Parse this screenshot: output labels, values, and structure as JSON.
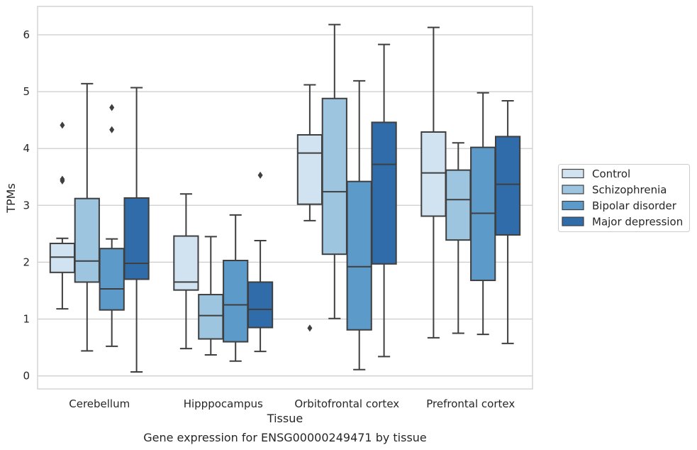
{
  "chart_data": {
    "type": "box",
    "title": "",
    "caption": "Gene expression for ENSG00000249471 by tissue",
    "xlabel": "Tissue",
    "ylabel": "TPMs",
    "ylim": [
      -0.23,
      6.5
    ],
    "yticks": [
      "0",
      "1",
      "2",
      "3",
      "4",
      "5",
      "6"
    ],
    "categories": [
      "Cerebellum",
      "Hipppocampus",
      "Orbitofrontal cortex",
      "Prefrontal cortex"
    ],
    "grid": "horizontal",
    "legend_position": "right",
    "series": [
      {
        "name": "Control",
        "color": "#d1e2f1",
        "boxes": [
          {
            "whislo": 1.18,
            "q1": 1.82,
            "med": 2.09,
            "q3": 2.33,
            "whishi": 2.42,
            "fliers": [
              3.43,
              3.46,
              4.41
            ]
          },
          {
            "whislo": 0.48,
            "q1": 1.51,
            "med": 1.65,
            "q3": 2.46,
            "whishi": 3.2,
            "fliers": []
          },
          {
            "whislo": 2.73,
            "q1": 3.02,
            "med": 3.92,
            "q3": 4.24,
            "whishi": 5.12,
            "fliers": [
              0.84
            ]
          },
          {
            "whislo": 0.67,
            "q1": 2.81,
            "med": 3.57,
            "q3": 4.29,
            "whishi": 6.13,
            "fliers": []
          }
        ]
      },
      {
        "name": "Schizophrenia",
        "color": "#9dc5df",
        "boxes": [
          {
            "whislo": 0.44,
            "q1": 1.65,
            "med": 2.02,
            "q3": 3.12,
            "whishi": 5.14,
            "fliers": []
          },
          {
            "whislo": 0.37,
            "q1": 0.65,
            "med": 1.06,
            "q3": 1.43,
            "whishi": 2.45,
            "fliers": []
          },
          {
            "whislo": 1.01,
            "q1": 2.14,
            "med": 3.24,
            "q3": 4.88,
            "whishi": 6.18,
            "fliers": []
          },
          {
            "whislo": 0.75,
            "q1": 2.39,
            "med": 3.1,
            "q3": 3.62,
            "whishi": 4.1,
            "fliers": []
          }
        ]
      },
      {
        "name": "Bipolar disorder",
        "color": "#5b9ac9",
        "boxes": [
          {
            "whislo": 0.52,
            "q1": 1.16,
            "med": 1.53,
            "q3": 2.24,
            "whishi": 2.41,
            "fliers": [
              4.33,
              4.72
            ]
          },
          {
            "whislo": 0.26,
            "q1": 0.6,
            "med": 1.25,
            "q3": 2.03,
            "whishi": 2.83,
            "fliers": []
          },
          {
            "whislo": 0.11,
            "q1": 0.81,
            "med": 1.92,
            "q3": 3.42,
            "whishi": 5.19,
            "fliers": []
          },
          {
            "whislo": 0.73,
            "q1": 1.68,
            "med": 2.86,
            "q3": 4.02,
            "whishi": 4.98,
            "fliers": []
          }
        ]
      },
      {
        "name": "Major depression",
        "color": "#2f6ca9",
        "boxes": [
          {
            "whislo": 0.07,
            "q1": 1.7,
            "med": 1.98,
            "q3": 3.13,
            "whishi": 5.07,
            "fliers": []
          },
          {
            "whislo": 0.43,
            "q1": 0.85,
            "med": 1.17,
            "q3": 1.65,
            "whishi": 2.38,
            "fliers": [
              3.53
            ]
          },
          {
            "whislo": 0.34,
            "q1": 1.97,
            "med": 3.72,
            "q3": 4.46,
            "whishi": 5.83,
            "fliers": []
          },
          {
            "whislo": 0.57,
            "q1": 2.48,
            "med": 3.37,
            "q3": 4.21,
            "whishi": 4.84,
            "fliers": []
          }
        ]
      }
    ]
  }
}
